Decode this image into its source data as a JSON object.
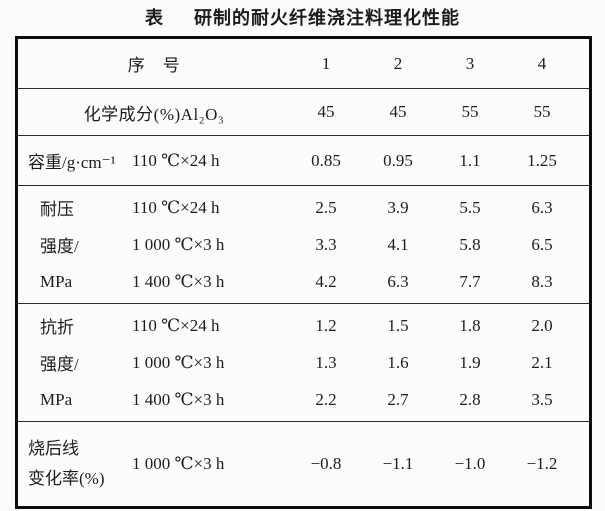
{
  "title": {
    "label": "表",
    "caption": "研制的耐火纤维浇注料理化性能"
  },
  "colors": {
    "paper": "#fcfcfb",
    "text": "#1c1c1c",
    "outer_border": "#0d0d0d",
    "rule": "#2b2b2b"
  },
  "header": {
    "label": "序　号",
    "columns": [
      "1",
      "2",
      "3",
      "4"
    ]
  },
  "sections": [
    {
      "name": "chemical-composition",
      "rows": [
        {
          "label": "化学成分(%)Al₂O₃",
          "values": [
            "45",
            "45",
            "55",
            "55"
          ]
        }
      ]
    },
    {
      "name": "bulk-density",
      "rows": [
        {
          "label": "容重/g·cm⁻¹",
          "condition": "110 ℃×24 h",
          "values": [
            "0.85",
            "0.95",
            "1.1",
            "1.25"
          ]
        }
      ]
    },
    {
      "name": "compressive-strength",
      "label_lines": [
        "耐压",
        "强度/",
        "MPa"
      ],
      "rows": [
        {
          "condition": "110 ℃×24 h",
          "values": [
            "2.5",
            "3.9",
            "5.5",
            "6.3"
          ]
        },
        {
          "condition": "1 000 ℃×3 h",
          "values": [
            "3.3",
            "4.1",
            "5.8",
            "6.5"
          ]
        },
        {
          "condition": "1 400 ℃×3 h",
          "values": [
            "4.2",
            "6.3",
            "7.7",
            "8.3"
          ]
        }
      ]
    },
    {
      "name": "flexural-strength",
      "label_lines": [
        "抗折",
        "强度/",
        "MPa"
      ],
      "rows": [
        {
          "condition": "110 ℃×24 h",
          "values": [
            "1.2",
            "1.5",
            "1.8",
            "2.0"
          ]
        },
        {
          "condition": "1 000 ℃×3 h",
          "values": [
            "1.3",
            "1.6",
            "1.9",
            "2.1"
          ]
        },
        {
          "condition": "1 400 ℃×3 h",
          "values": [
            "2.2",
            "2.7",
            "2.8",
            "3.5"
          ]
        }
      ]
    },
    {
      "name": "linear-change-after-firing",
      "label_lines": [
        "烧后线",
        "变化率(%)"
      ],
      "rows": [
        {
          "condition": "1 000 ℃×3 h",
          "values": [
            "−0.8",
            "−1.1",
            "−1.0",
            "−1.2"
          ]
        }
      ]
    }
  ]
}
